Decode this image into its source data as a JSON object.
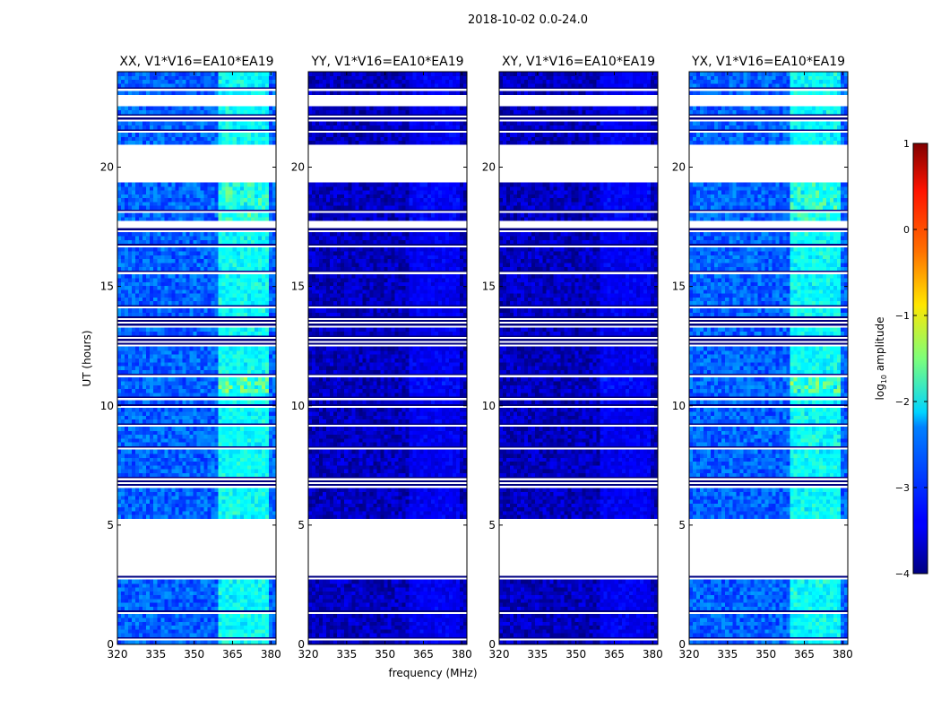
{
  "figure": {
    "suptitle": "2018-10-02 0.0-24.0",
    "xlabel": "frequency (MHz)",
    "ylabel": "UT (hours)"
  },
  "chart_data": {
    "type": "heatmap",
    "title": "2018-10-02 0.0-24.0",
    "xlabel": "frequency (MHz)",
    "ylabel": "UT (hours)",
    "xlim": [
      320,
      382
    ],
    "ylim": [
      0,
      24
    ],
    "xticks": [
      320,
      335,
      350,
      365,
      380
    ],
    "yticks": [
      0,
      5,
      10,
      15,
      20
    ],
    "colormap": "jet",
    "colorbar": {
      "label": "log10 amplitude",
      "label_base": "log",
      "label_sub": "10",
      "label_rest": " amplitude",
      "ticks": [
        1,
        0,
        -1,
        -2,
        -3,
        -4
      ],
      "tick_labels": [
        "1",
        "0",
        "−1",
        "−2",
        "−3",
        "−4"
      ],
      "range": [
        -4,
        1
      ]
    },
    "rfi_band_mhz": [
      359,
      379
    ],
    "gaps_ut_hours": [
      [
        2.95,
        5.2
      ],
      [
        17.5,
        17.7
      ],
      [
        19.4,
        21.0
      ],
      [
        22.6,
        23.0
      ]
    ],
    "panels": [
      {
        "title": "XX, V1*V16=EA10*EA19",
        "polarization": "XX",
        "baseline_level": -2.9,
        "band_level": -2.3,
        "peak_level": -1.3
      },
      {
        "title": "YY, V1*V16=EA10*EA19",
        "polarization": "YY",
        "baseline_level": -3.7,
        "band_level": -3.5,
        "peak_level": -3.2
      },
      {
        "title": "XY, V1*V16=EA10*EA19",
        "polarization": "XY",
        "baseline_level": -3.7,
        "band_level": -3.5,
        "peak_level": -3.2
      },
      {
        "title": "YX, V1*V16=EA10*EA19",
        "polarization": "YX",
        "baseline_level": -2.9,
        "band_level": -2.3,
        "peak_level": -1.3
      }
    ]
  }
}
